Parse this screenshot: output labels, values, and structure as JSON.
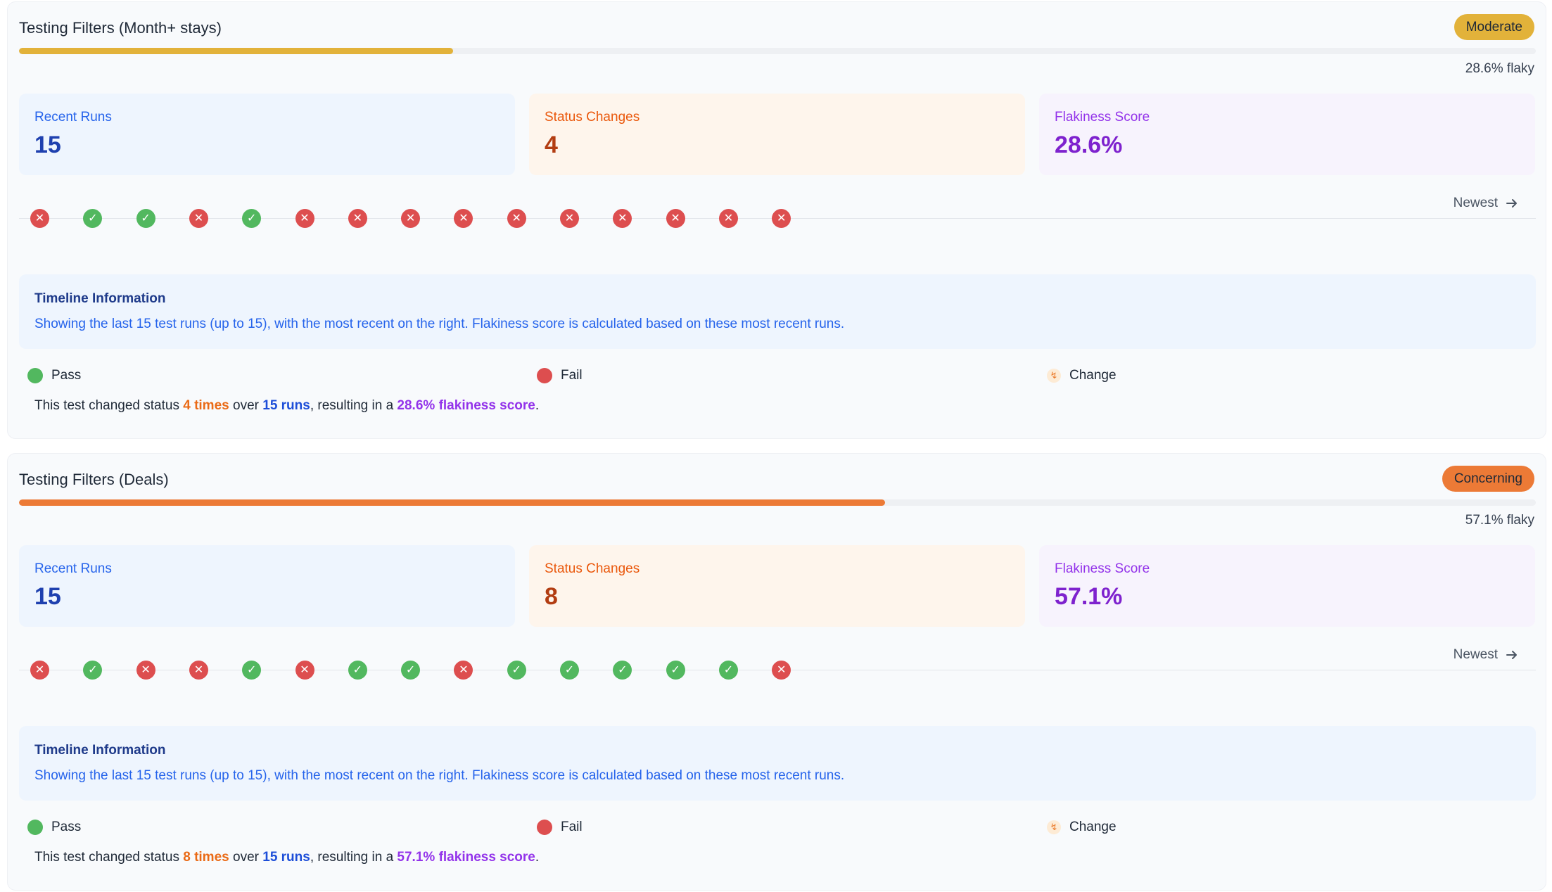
{
  "colors": {
    "moderate": "#e2b23a",
    "concerning": "#ec7a36",
    "pass": "#52b85f",
    "fail": "#dd4e4f"
  },
  "labels": {
    "recent_runs": "Recent Runs",
    "status_changes": "Status Changes",
    "flakiness_score": "Flakiness Score",
    "newest": "Newest",
    "pass": "Pass",
    "fail": "Fail",
    "change": "Change",
    "change_glyph": "↯",
    "timeline_title": "Timeline Information",
    "timeline_text": "Showing the last 15 test runs (up to 15), with the most recent on the right. Flakiness score is calculated based on these most recent runs.",
    "summary_prefix": "This test changed status",
    "summary_over": "over",
    "summary_resulting": ", resulting in a",
    "summary_end": "."
  },
  "tests": [
    {
      "title": "Testing Filters (Month+ stays)",
      "badge": "Moderate",
      "flaky_fraction": 0.286,
      "flaky_label": "28.6% flaky",
      "recent_runs": "15",
      "status_changes": "4",
      "flakiness_score": "28.6%",
      "runs": [
        "fail",
        "pass",
        "pass",
        "fail",
        "pass",
        "fail",
        "fail",
        "fail",
        "fail",
        "fail",
        "fail",
        "fail",
        "fail",
        "fail",
        "fail"
      ],
      "summary_times": "4 times",
      "summary_runs": "15 runs",
      "summary_score": "28.6% flakiness score"
    },
    {
      "title": "Testing Filters (Deals)",
      "badge": "Concerning",
      "flaky_fraction": 0.571,
      "flaky_label": "57.1% flaky",
      "recent_runs": "15",
      "status_changes": "8",
      "flakiness_score": "57.1%",
      "runs": [
        "fail",
        "pass",
        "fail",
        "fail",
        "pass",
        "fail",
        "pass",
        "pass",
        "fail",
        "pass",
        "pass",
        "pass",
        "pass",
        "pass",
        "fail"
      ],
      "summary_times": "8 times",
      "summary_runs": "15 runs",
      "summary_score": "57.1% flakiness score"
    }
  ]
}
